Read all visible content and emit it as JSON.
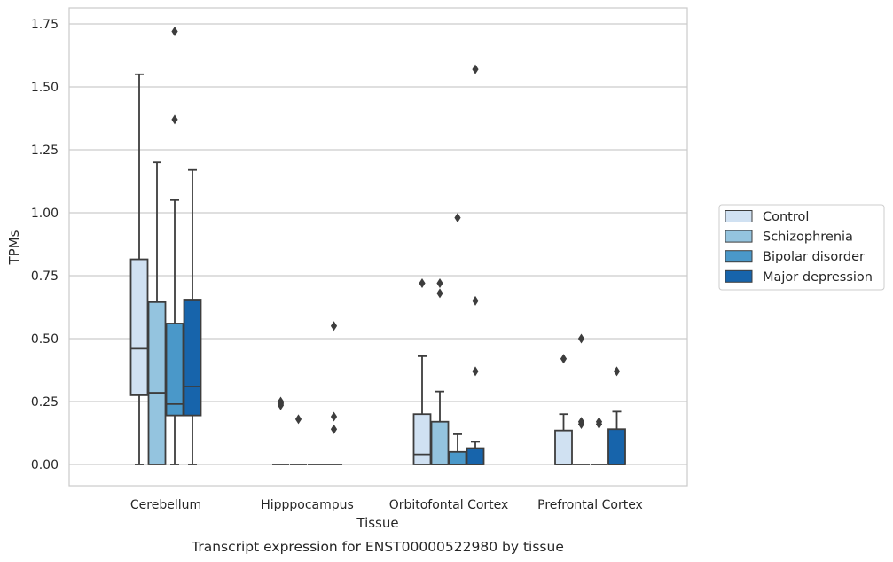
{
  "chart_data": {
    "type": "box",
    "title": "",
    "xlabel": "Tissue",
    "ylabel": "TPMs",
    "caption": "Transcript expression for ENST00000522980 by tissue",
    "ylim": [
      -0.08,
      1.81
    ],
    "yticks": [
      0.0,
      0.25,
      0.5,
      0.75,
      1.0,
      1.25,
      1.5,
      1.75
    ],
    "ytick_labels": [
      "0.00",
      "0.25",
      "0.50",
      "0.75",
      "1.00",
      "1.25",
      "1.50",
      "1.75"
    ],
    "grid": "horizontal",
    "legend_position": "right",
    "categories": [
      "Cerebellum",
      "Hipppocampus",
      "Orbitofontal Cortex",
      "Prefrontal Cortex"
    ],
    "series": [
      {
        "name": "Control",
        "color": "#d0e1f2",
        "boxes": [
          {
            "whisker_low": 0.0,
            "q1": 0.275,
            "median": 0.46,
            "q3": 0.815,
            "whisker_high": 1.55,
            "outliers": []
          },
          {
            "whisker_low": 0.0,
            "q1": 0.0,
            "median": 0.0,
            "q3": 0.0,
            "whisker_high": 0.0,
            "outliers": [
              0.25,
              0.245,
              0.24,
              0.235
            ]
          },
          {
            "whisker_low": 0.0,
            "q1": 0.0,
            "median": 0.04,
            "q3": 0.2,
            "whisker_high": 0.43,
            "outliers": [
              0.72
            ]
          },
          {
            "whisker_low": 0.0,
            "q1": 0.0,
            "median": 0.0,
            "q3": 0.135,
            "whisker_high": 0.2,
            "outliers": [
              0.42
            ]
          }
        ]
      },
      {
        "name": "Schizophrenia",
        "color": "#94c4df",
        "boxes": [
          {
            "whisker_low": 0.0,
            "q1": 0.0,
            "median": 0.285,
            "q3": 0.645,
            "whisker_high": 1.2,
            "outliers": []
          },
          {
            "whisker_low": 0.0,
            "q1": 0.0,
            "median": 0.0,
            "q3": 0.0,
            "whisker_high": 0.0,
            "outliers": [
              0.18
            ]
          },
          {
            "whisker_low": 0.0,
            "q1": 0.0,
            "median": 0.0,
            "q3": 0.17,
            "whisker_high": 0.29,
            "outliers": [
              0.72,
              0.68
            ]
          },
          {
            "whisker_low": 0.0,
            "q1": 0.0,
            "median": 0.0,
            "q3": 0.0,
            "whisker_high": 0.0,
            "outliers": [
              0.5,
              0.17,
              0.16
            ]
          }
        ]
      },
      {
        "name": "Bipolar disorder",
        "color": "#4a98c9",
        "boxes": [
          {
            "whisker_low": 0.0,
            "q1": 0.195,
            "median": 0.24,
            "q3": 0.56,
            "whisker_high": 1.05,
            "outliers": [
              1.72,
              1.37
            ]
          },
          {
            "whisker_low": 0.0,
            "q1": 0.0,
            "median": 0.0,
            "q3": 0.0,
            "whisker_high": 0.0,
            "outliers": []
          },
          {
            "whisker_low": 0.0,
            "q1": 0.0,
            "median": 0.0,
            "q3": 0.05,
            "whisker_high": 0.12,
            "outliers": [
              0.98
            ]
          },
          {
            "whisker_low": 0.0,
            "q1": 0.0,
            "median": 0.0,
            "q3": 0.0,
            "whisker_high": 0.0,
            "outliers": [
              0.17,
              0.16
            ]
          }
        ]
      },
      {
        "name": "Major depression",
        "color": "#1764ab",
        "boxes": [
          {
            "whisker_low": 0.0,
            "q1": 0.195,
            "median": 0.31,
            "q3": 0.655,
            "whisker_high": 1.17,
            "outliers": []
          },
          {
            "whisker_low": 0.0,
            "q1": 0.0,
            "median": 0.0,
            "q3": 0.0,
            "whisker_high": 0.0,
            "outliers": [
              0.55,
              0.19,
              0.14
            ]
          },
          {
            "whisker_low": 0.0,
            "q1": 0.0,
            "median": 0.0,
            "q3": 0.065,
            "whisker_high": 0.09,
            "outliers": [
              1.57,
              0.65,
              0.37
            ]
          },
          {
            "whisker_low": 0.0,
            "q1": 0.0,
            "median": 0.0,
            "q3": 0.14,
            "whisker_high": 0.21,
            "outliers": [
              0.37
            ]
          }
        ]
      }
    ]
  }
}
